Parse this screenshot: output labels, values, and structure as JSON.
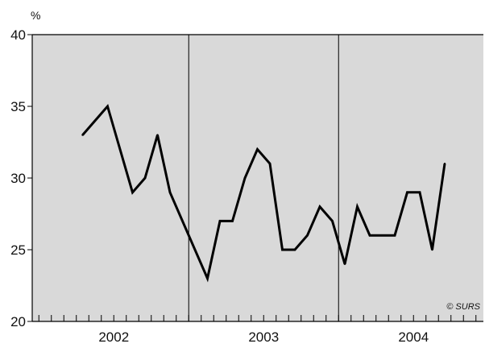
{
  "chart_data": {
    "type": "line",
    "unit_label": "%",
    "ylim": [
      20,
      40
    ],
    "y_ticks": [
      "20",
      "25",
      "30",
      "35",
      "40"
    ],
    "grid": false,
    "year_labels": [
      "2002",
      "2003",
      "2004"
    ],
    "months_per_year": 12,
    "series": [
      {
        "values": [
          [
            3,
            33
          ],
          [
            5,
            35
          ],
          [
            7,
            29
          ],
          [
            8,
            30
          ],
          [
            9,
            33
          ],
          [
            10,
            29
          ],
          [
            13,
            23
          ],
          [
            14,
            27
          ],
          [
            15,
            27
          ],
          [
            16,
            30
          ],
          [
            17,
            32
          ],
          [
            18,
            31
          ],
          [
            19,
            25
          ],
          [
            20,
            25
          ],
          [
            21,
            26
          ],
          [
            22,
            28
          ],
          [
            23,
            27
          ],
          [
            24,
            24
          ],
          [
            25,
            28
          ],
          [
            26,
            26
          ],
          [
            27,
            26
          ],
          [
            28,
            26
          ],
          [
            29,
            29
          ],
          [
            30,
            29
          ],
          [
            31,
            25
          ],
          [
            32,
            31
          ]
        ],
        "color": "#000000"
      }
    ],
    "background_color": "#d9d9d9",
    "credit": "© SURS"
  }
}
